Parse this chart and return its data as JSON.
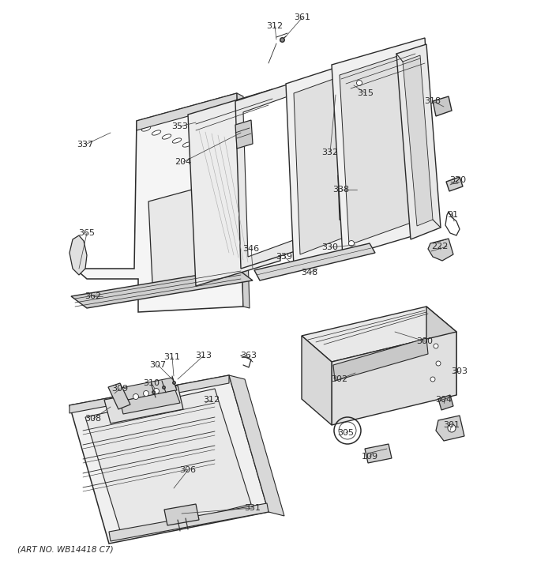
{
  "art_no": "(ART NO. WB14418 C7)",
  "bg_color": "#ffffff",
  "line_color": "#2a2a2a",
  "figsize": [
    6.8,
    7.24
  ],
  "dpi": 100,
  "upper_labels": [
    [
      "361",
      383,
      22
    ],
    [
      "312",
      348,
      33
    ],
    [
      "315",
      463,
      118
    ],
    [
      "318",
      548,
      128
    ],
    [
      "337",
      108,
      183
    ],
    [
      "353",
      228,
      160
    ],
    [
      "204",
      232,
      205
    ],
    [
      "332",
      418,
      193
    ],
    [
      "338",
      432,
      240
    ],
    [
      "320",
      580,
      228
    ],
    [
      "91",
      573,
      272
    ],
    [
      "222",
      557,
      312
    ],
    [
      "365",
      110,
      295
    ],
    [
      "346",
      318,
      315
    ],
    [
      "339",
      360,
      325
    ],
    [
      "330",
      418,
      313
    ],
    [
      "362",
      118,
      375
    ],
    [
      "348",
      392,
      345
    ]
  ],
  "lower_right_labels": [
    [
      "300",
      538,
      432
    ],
    [
      "303",
      582,
      470
    ],
    [
      "302",
      430,
      480
    ],
    [
      "304",
      562,
      506
    ],
    [
      "301",
      572,
      538
    ],
    [
      "305",
      438,
      548
    ],
    [
      "109",
      468,
      578
    ]
  ],
  "lower_left_labels": [
    [
      "307",
      200,
      462
    ],
    [
      "311",
      218,
      452
    ],
    [
      "313",
      258,
      450
    ],
    [
      "363",
      315,
      450
    ],
    [
      "309",
      152,
      492
    ],
    [
      "310",
      192,
      485
    ],
    [
      "312",
      268,
      506
    ],
    [
      "308",
      118,
      530
    ],
    [
      "306",
      238,
      595
    ],
    [
      "331",
      320,
      643
    ]
  ]
}
